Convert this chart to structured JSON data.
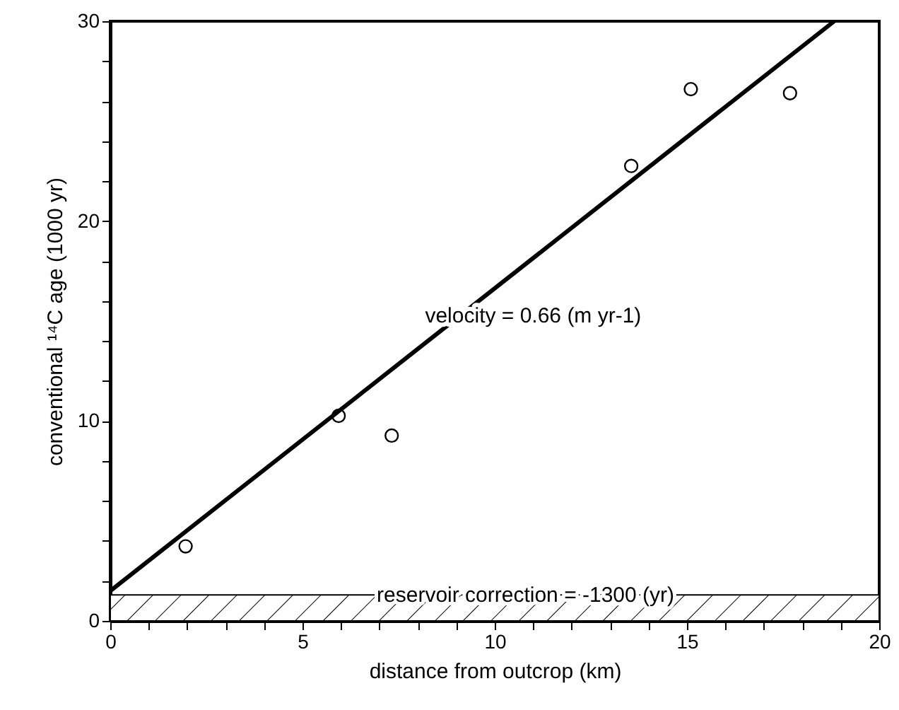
{
  "chart_data": {
    "type": "scatter",
    "xlabel": "distance from outcrop (km)",
    "ylabel": "conventional ¹⁴C age (1000 yr)",
    "xlim": [
      0,
      20
    ],
    "ylim": [
      0,
      30
    ],
    "xticks": [
      0,
      {
        "value": 1,
        "label": null
      },
      {
        "value": 2,
        "label": null
      },
      {
        "value": 3,
        "label": null
      },
      {
        "value": 4,
        "label": null
      },
      5,
      {
        "value": 6,
        "label": null
      },
      {
        "value": 7,
        "label": null
      },
      {
        "value": 8,
        "label": null
      },
      {
        "value": 9,
        "label": null
      },
      10,
      {
        "value": 11,
        "label": null
      },
      {
        "value": 12,
        "label": null
      },
      {
        "value": 13,
        "label": null
      },
      {
        "value": 14,
        "label": null
      },
      15,
      {
        "value": 16,
        "label": null
      },
      {
        "value": 17,
        "label": null
      },
      {
        "value": 18,
        "label": null
      },
      {
        "value": 19,
        "label": null
      },
      20
    ],
    "yticks": [
      0,
      {
        "value": 2,
        "label": null
      },
      {
        "value": 4,
        "label": null
      },
      {
        "value": 6,
        "label": null
      },
      {
        "value": 8,
        "label": null
      },
      10,
      {
        "value": 12,
        "label": null
      },
      {
        "value": 14,
        "label": null
      },
      {
        "value": 16,
        "label": null
      },
      {
        "value": 18,
        "label": null
      },
      20,
      {
        "value": 22,
        "label": null
      },
      {
        "value": 24,
        "label": null
      },
      {
        "value": 26,
        "label": null
      },
      {
        "value": 28,
        "label": null
      },
      30
    ],
    "marker": "circle",
    "series": [
      {
        "color": "#000000",
        "x": [
          1.96,
          5.94,
          7.32,
          13.55,
          15.1,
          17.68
        ],
        "values": [
          3.73,
          10.26,
          9.27,
          22.76,
          26.6,
          26.4
        ]
      },
      {
        "type": "line",
        "color": "#000000",
        "line_style": "solid",
        "marker": "none",
        "x": [
          0,
          18.83
        ],
        "values": [
          1.5,
          30
        ]
      }
    ],
    "bands": [
      {
        "axis": "y",
        "from": 0,
        "to": 1.3,
        "label": "reservoir correction = -1300 (yr)"
      }
    ],
    "annotations": [
      "velocity = 0.66 (m yr-1)"
    ]
  }
}
